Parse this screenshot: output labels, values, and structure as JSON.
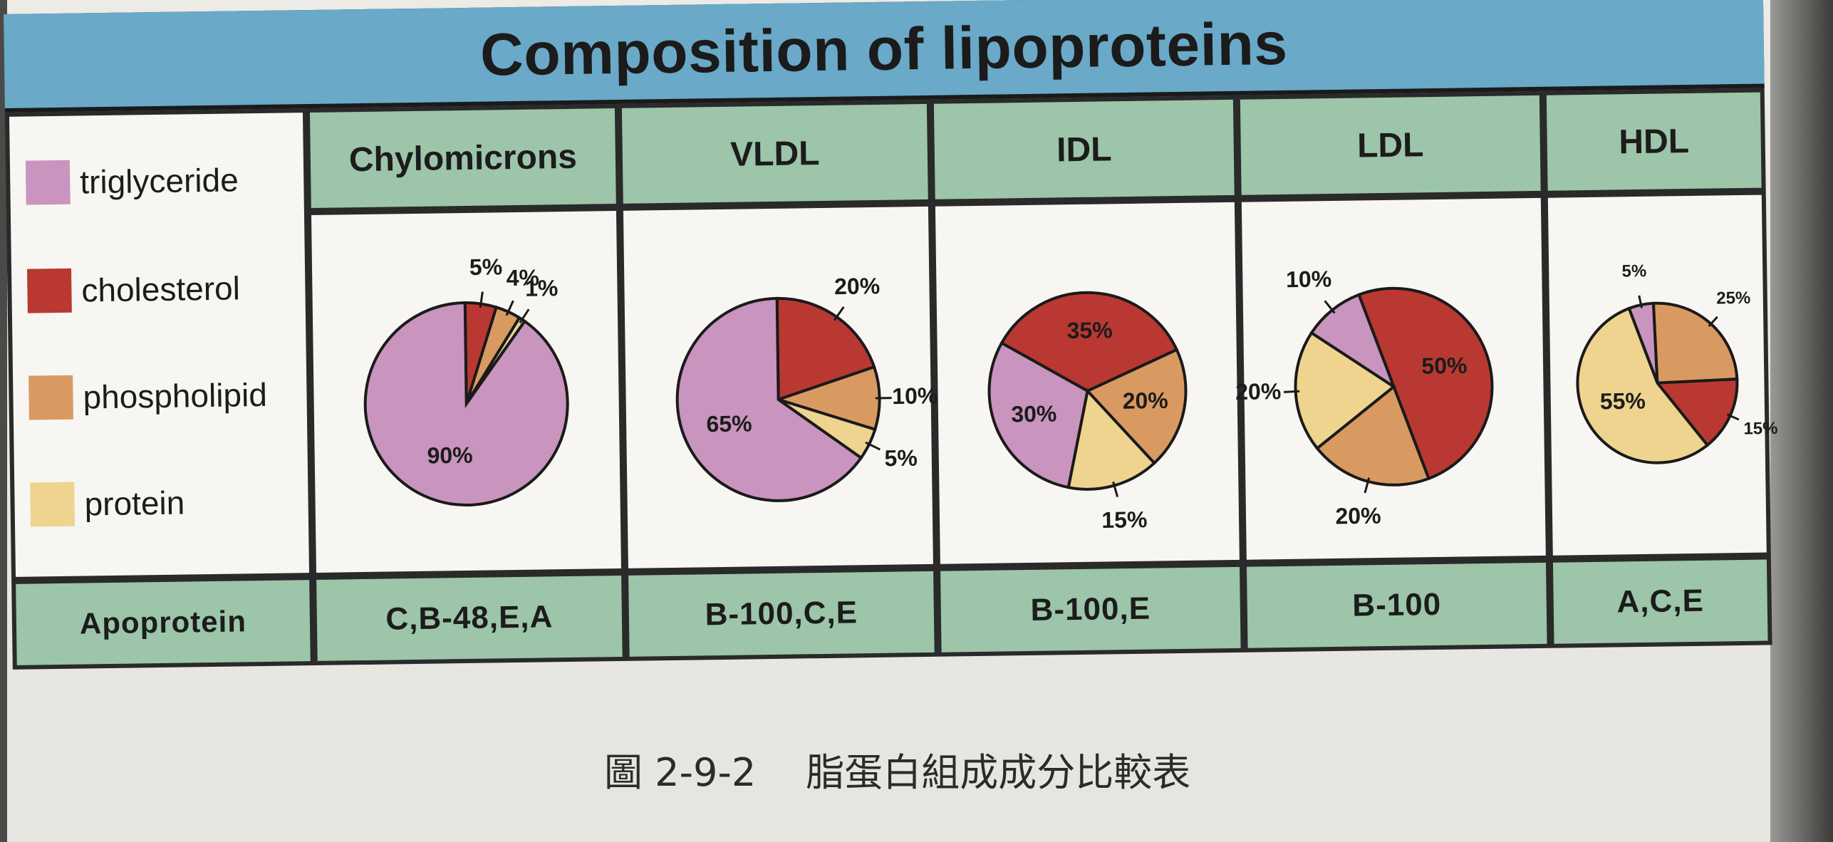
{
  "title": "Composition of lipoproteins",
  "legend": [
    {
      "label": "triglyceride",
      "color": "#c994bd"
    },
    {
      "label": "cholesterol",
      "color": "#b93832"
    },
    {
      "label": "phospholipid",
      "color": "#d99a62"
    },
    {
      "label": "protein",
      "color": "#eed48e"
    }
  ],
  "apoprotein_label": "Apoprotein",
  "caption": {
    "figure_number": "圖 2-9-2",
    "text": "脂蛋白組成成分比較表"
  },
  "columns": [
    {
      "header": "Chylomicrons",
      "apoprotein": "C,B-48,E,A"
    },
    {
      "header": "VLDL",
      "apoprotein": "B-100,C,E"
    },
    {
      "header": "IDL",
      "apoprotein": "B-100,E"
    },
    {
      "header": "LDL",
      "apoprotein": "B-100"
    },
    {
      "header": "HDL",
      "apoprotein": "A,C,E"
    }
  ],
  "chart_data": [
    {
      "type": "pie",
      "title": "Chylomicrons",
      "labels": [
        "triglyceride",
        "cholesterol",
        "phospholipid",
        "protein"
      ],
      "values": [
        90,
        5,
        4,
        1
      ],
      "value_labels": [
        "90%",
        "5%",
        "4%",
        "1%"
      ]
    },
    {
      "type": "pie",
      "title": "VLDL",
      "labels": [
        "triglyceride",
        "cholesterol",
        "phospholipid",
        "protein"
      ],
      "values": [
        65,
        20,
        10,
        5
      ],
      "value_labels": [
        "65%",
        "20%",
        "10%",
        "5%"
      ]
    },
    {
      "type": "pie",
      "title": "IDL",
      "labels": [
        "triglyceride",
        "cholesterol",
        "phospholipid",
        "protein"
      ],
      "values": [
        30,
        35,
        20,
        15
      ],
      "value_labels": [
        "30%",
        "35%",
        "20%",
        "15%"
      ]
    },
    {
      "type": "pie",
      "title": "LDL",
      "labels": [
        "triglyceride",
        "cholesterol",
        "phospholipid",
        "protein"
      ],
      "values": [
        10,
        50,
        20,
        20
      ],
      "value_labels": [
        "10%",
        "50%",
        "20%",
        "20%"
      ]
    },
    {
      "type": "pie",
      "title": "HDL",
      "labels": [
        "triglyceride",
        "cholesterol",
        "phospholipid",
        "protein"
      ],
      "values": [
        5,
        15,
        25,
        55
      ],
      "value_labels": [
        "5%",
        "15%",
        "25%",
        "55%"
      ]
    }
  ]
}
